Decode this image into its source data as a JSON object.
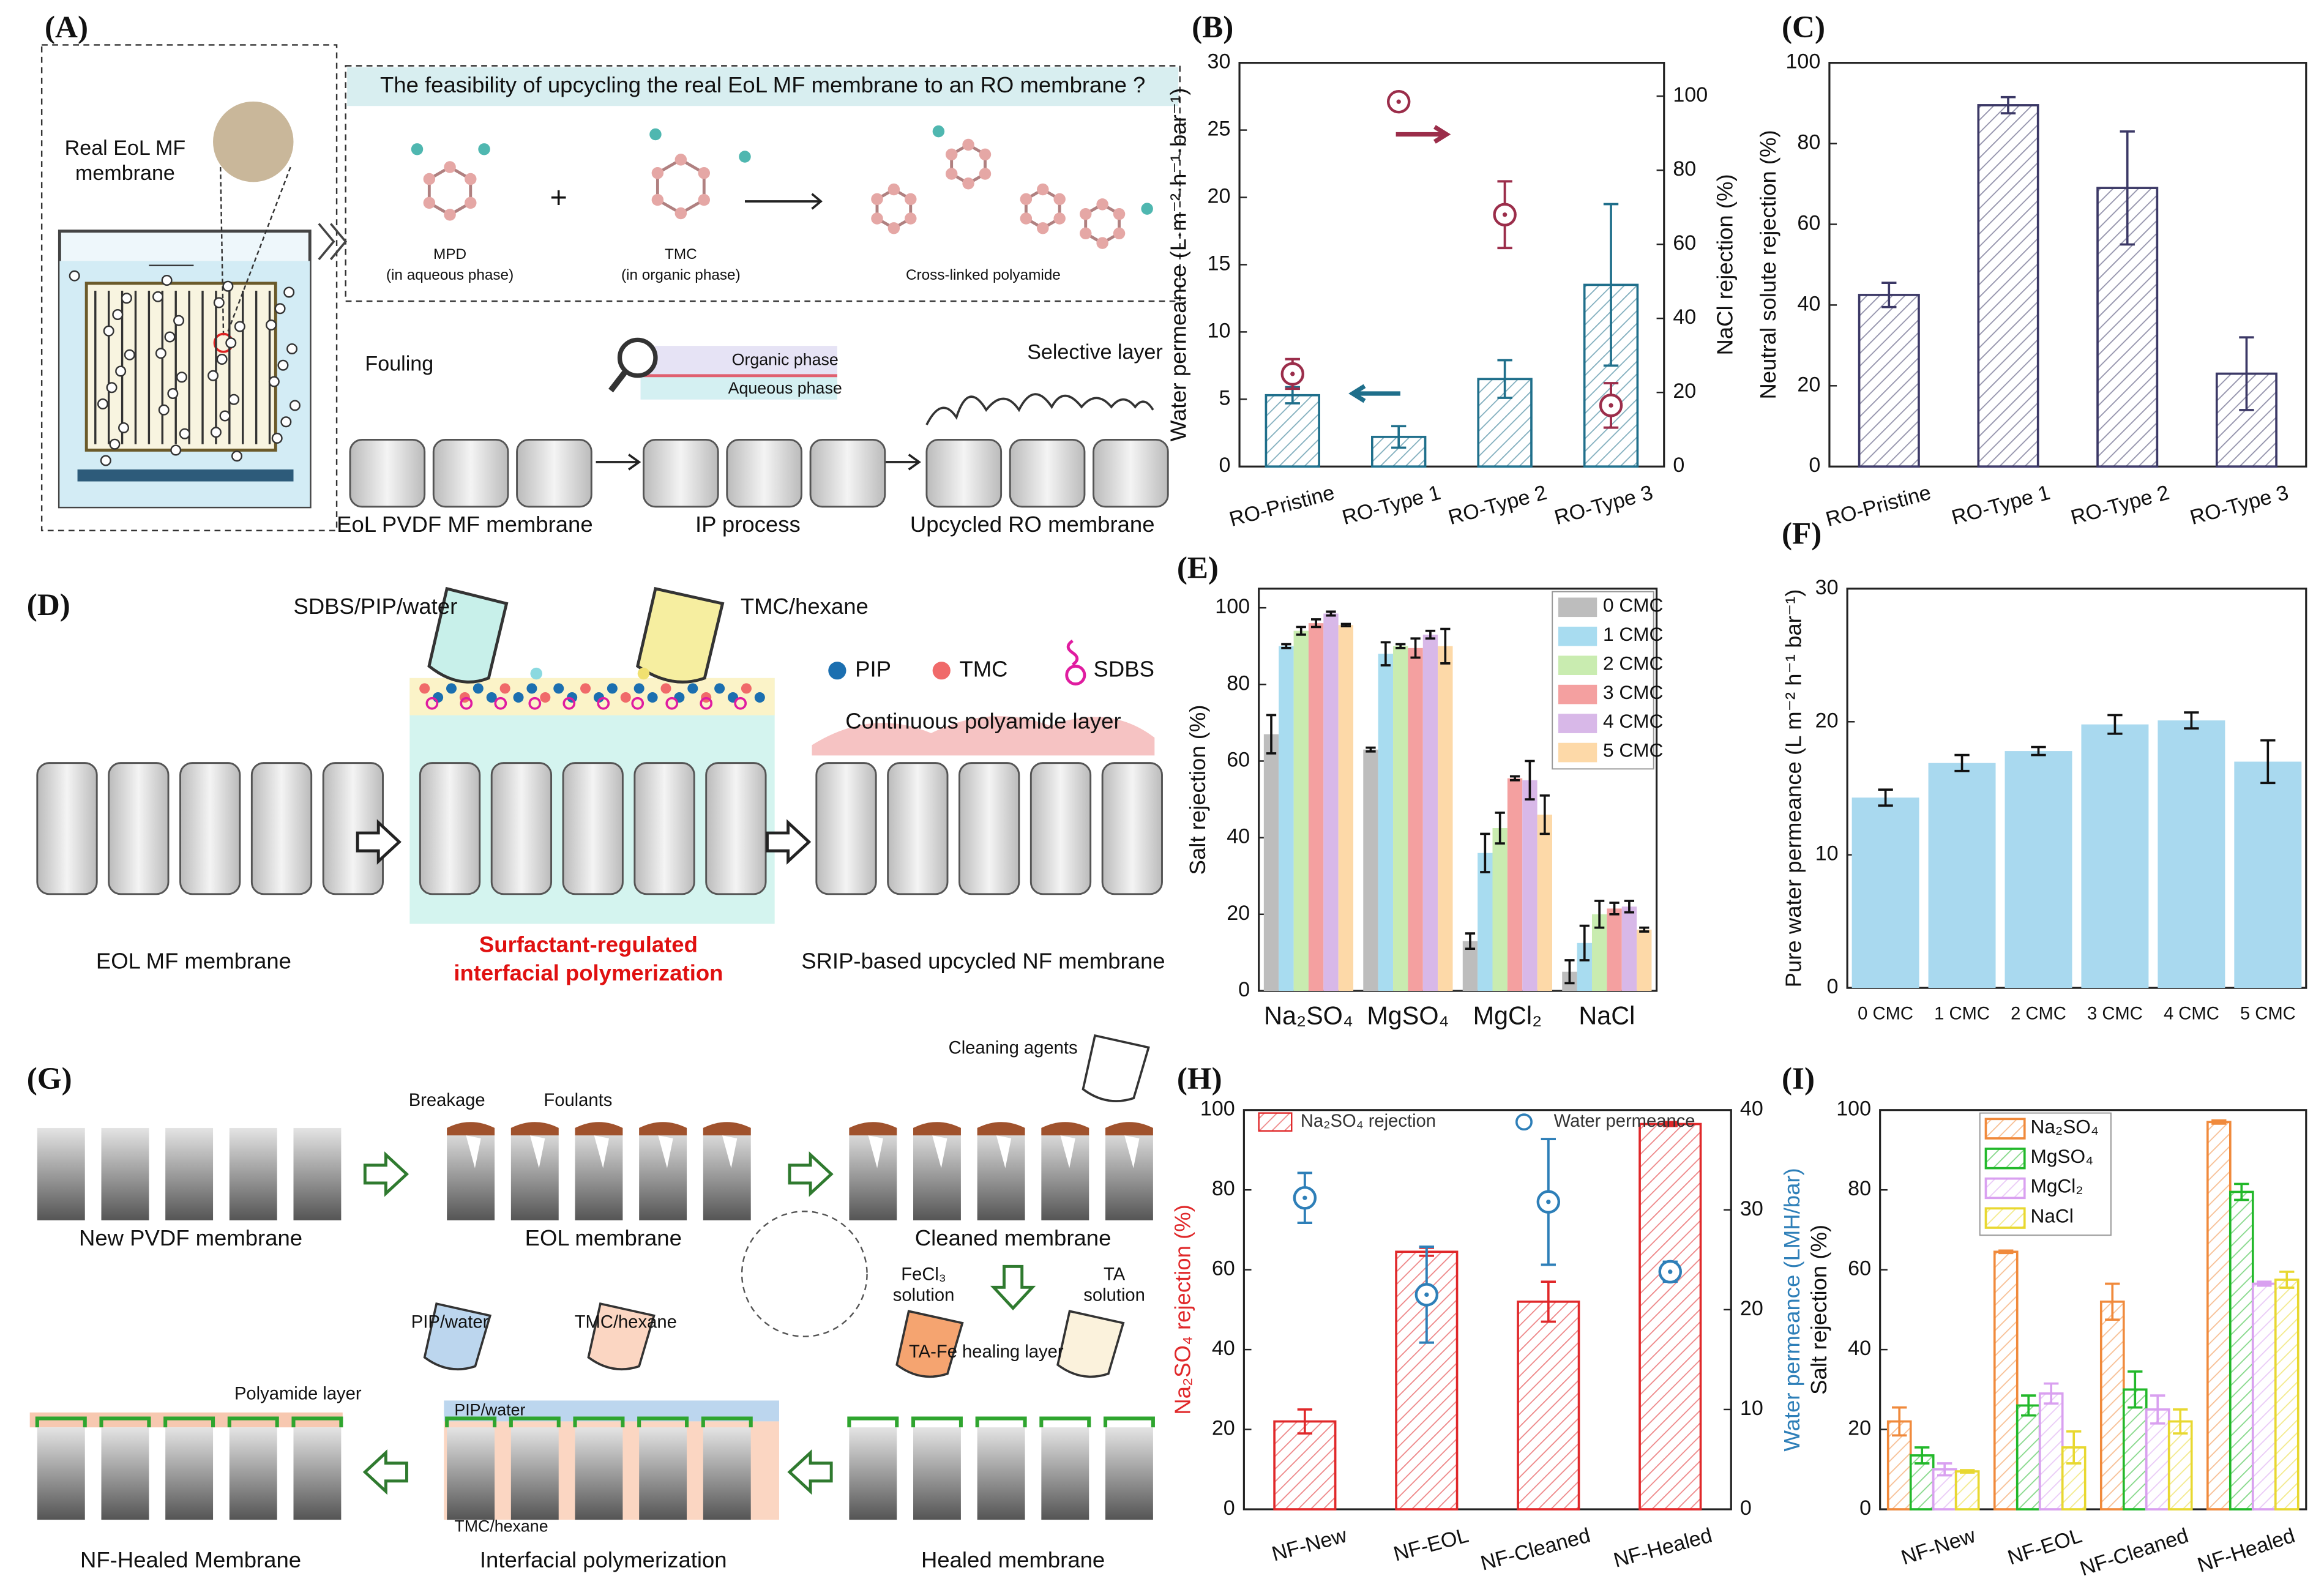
{
  "figure": {
    "panel_labels": [
      "(A)",
      "(B)",
      "(C)",
      "(D)",
      "(E)",
      "(F)",
      "(G)",
      "(H)",
      "(I)"
    ],
    "A": {
      "question": "The feasibility of upcycling the real EoL MF membrane to an RO membrane ?",
      "real_1": "Real EoL MF",
      "real_2": "membrane",
      "mpd": "MPD",
      "mpd_phase": "(in aqueous phase)",
      "plus": "+",
      "tmc": "TMC",
      "tmc_phase": "(in organic phase)",
      "product": "Cross-linked polyamide",
      "fouling": "Fouling",
      "organic": "Organic phase",
      "aqueous": "Aqueous phase",
      "selective": "Selective layer",
      "step1": "EoL PVDF MF membrane",
      "step2": "IP process",
      "step3": "Upcycled RO membrane"
    },
    "D": {
      "beaker1": "SDBS/PIP/water",
      "beaker2": "TMC/hexane",
      "pip": "PIP",
      "tmc": "TMC",
      "sdbs": "SDBS",
      "layer": "Continuous polyamide layer",
      "step1": "EOL  MF membrane",
      "step2_1": "Surfactant-regulated",
      "step2_2": "interfacial polymerization",
      "step3": "SRIP-based upcycled NF membrane"
    },
    "G": {
      "breakage": "Breakage",
      "foulants": "Foulants",
      "cleaning": "Cleaning agents",
      "new": "New PVDF membrane",
      "eol": "EOL membrane",
      "cleaned": "Cleaned membrane",
      "pip": "PIP/water",
      "tmc": "TMC/hexane",
      "fecl3": "FeCl₃",
      "fecl3_sol": "solution",
      "ta": "TA",
      "ta_sol": "solution",
      "healing": "TA-Fe healing layer",
      "polyamide": "Polyamide layer",
      "pip_bar": "PIP/water",
      "tmc_bar": "TMC/hexane",
      "healed_nf": "NF-Healed Membrane",
      "ip": "Interfacial polymerization",
      "healed": "Healed membrane"
    }
  },
  "chart_data": [
    {
      "type": "bar",
      "hatch": true,
      "categories": [
        "RO-Pristine",
        "RO-Type 1",
        "RO-Type 2",
        "RO-Type 3"
      ],
      "ylabel": "Water permeance (L·m⁻²·h⁻¹·bar⁻¹)",
      "y2label": "NaCl rejection (%)",
      "ylim": [
        0,
        30
      ],
      "yticks": [
        0,
        5,
        10,
        15,
        20,
        25,
        30
      ],
      "y2lim": [
        0,
        109
      ],
      "y2ticks": [
        0,
        20,
        40,
        60,
        80,
        100
      ],
      "series": [
        {
          "color": "#1f6f8b",
          "values": [
            5.3,
            2.2,
            6.5,
            13.5
          ],
          "errors": [
            0.6,
            0.8,
            1.4,
            6
          ]
        },
        {
          "type": "point",
          "axis": "y2",
          "color": "#9b2d4a",
          "values": [
            25,
            98.5,
            68,
            16.5
          ],
          "errors": [
            4,
            1.5,
            9,
            6
          ]
        }
      ]
    },
    {
      "type": "bar",
      "hatch": true,
      "categories": [
        "RO-Pristine",
        "RO-Type 1",
        "RO-Type 2",
        "RO-Type 3"
      ],
      "ylabel": "Neutral solute rejection (%)",
      "ylim": [
        0,
        100
      ],
      "yticks": [
        0,
        20,
        40,
        60,
        80,
        100
      ],
      "series": [
        {
          "color": "#3b3866",
          "values": [
            42.5,
            89.5,
            69,
            23
          ],
          "errors": [
            3,
            2,
            14,
            9
          ]
        }
      ]
    },
    {
      "type": "bar",
      "hatch": false,
      "legend": "upper right",
      "categories": [
        "Na₂SO₄",
        "MgSO₄",
        "MgCl₂",
        "NaCl"
      ],
      "ylabel": "Salt rejection (%)",
      "ylim": [
        0,
        105
      ],
      "yticks": [
        0,
        20,
        40,
        60,
        80,
        100
      ],
      "series": [
        {
          "name": "0 CMC",
          "color": "#bdbdbd",
          "values": [
            67,
            63,
            13,
            5
          ],
          "errors": [
            5,
            0.5,
            2,
            3
          ]
        },
        {
          "name": "1 CMC",
          "color": "#a8dcf0",
          "values": [
            90,
            88,
            36,
            12.5
          ],
          "errors": [
            0.5,
            3,
            5,
            4.5
          ]
        },
        {
          "name": "2 CMC",
          "color": "#c9ecb0",
          "values": [
            94,
            90,
            42.5,
            20
          ],
          "errors": [
            1,
            0.5,
            4,
            3.5
          ]
        },
        {
          "name": "3 CMC",
          "color": "#f4a0a0",
          "values": [
            96,
            89.5,
            55.5,
            21.5
          ],
          "errors": [
            1,
            2.5,
            0.5,
            1.5
          ]
        },
        {
          "name": "4 CMC",
          "color": "#d8b8e8",
          "values": [
            98.5,
            93,
            55,
            22
          ],
          "errors": [
            0.5,
            1,
            5,
            1.5
          ]
        },
        {
          "name": "5 CMC",
          "color": "#fdd9a8",
          "values": [
            95.5,
            90,
            46,
            16
          ],
          "errors": [
            0.3,
            4.5,
            5,
            0.5
          ]
        }
      ]
    },
    {
      "type": "bar",
      "hatch": false,
      "categories": [
        "0 CMC",
        "1 CMC",
        "2 CMC",
        "3 CMC",
        "4 CMC",
        "5 CMC"
      ],
      "ylabel": "Pure water permeance (L m⁻² h⁻¹ bar⁻¹)",
      "ylim": [
        0,
        30
      ],
      "yticks": [
        0,
        10,
        20,
        30
      ],
      "series": [
        {
          "color": "#a9d9ef",
          "values": [
            14.3,
            16.9,
            17.8,
            19.8,
            20.1,
            17
          ],
          "errors": [
            0.6,
            0.6,
            0.3,
            0.7,
            0.6,
            1.6
          ]
        }
      ]
    },
    {
      "type": "bar",
      "hatch": true,
      "legend": "top",
      "categories": [
        "NF-New",
        "NF-EOL",
        "NF-Cleaned",
        "NF-Healed"
      ],
      "ylabel": "Na₂SO₄ rejection (%)",
      "ylabel_color": "#e0282a",
      "y2label": "Water permeance (LMH/bar)",
      "y2label_color": "#2e7fb8",
      "ylim": [
        0,
        100
      ],
      "yticks": [
        0,
        20,
        40,
        60,
        80,
        100
      ],
      "y2lim": [
        0,
        40
      ],
      "y2ticks": [
        0,
        10,
        20,
        30,
        40
      ],
      "series": [
        {
          "name": "Na₂SO₄ rejection",
          "color": "#e0282a",
          "values": [
            22,
            64.5,
            52,
            96.5
          ],
          "errors": [
            3,
            1,
            5,
            0.5
          ]
        },
        {
          "name": "Water permeance",
          "type": "point",
          "axis": "y2",
          "color": "#2e7fb8",
          "values": [
            31.2,
            21.5,
            30.8,
            23.8
          ],
          "errors": [
            2.5,
            4.8,
            6.3,
            1
          ]
        }
      ]
    },
    {
      "type": "bar",
      "hatch": true,
      "legend": "upper center",
      "categories": [
        "NF-New",
        "NF-EOL",
        "NF-Cleaned",
        "NF-Healed"
      ],
      "ylabel": "Salt rejection (%)",
      "ylim": [
        0,
        100
      ],
      "yticks": [
        0,
        20,
        40,
        60,
        80,
        100
      ],
      "series": [
        {
          "name": "Na₂SO₄",
          "color": "#f08a3c",
          "values": [
            22,
            64.5,
            52,
            97
          ],
          "errors": [
            3.5,
            0.3,
            4.5,
            0.4
          ]
        },
        {
          "name": "MgSO₄",
          "color": "#22b82a",
          "values": [
            13.5,
            26,
            30,
            79.5
          ],
          "errors": [
            2,
            2.5,
            4.5,
            2
          ]
        },
        {
          "name": "MgCl₂",
          "color": "#d9a0f0",
          "values": [
            10,
            29,
            25,
            56.5
          ],
          "errors": [
            1.5,
            2.5,
            3.5,
            0.5
          ]
        },
        {
          "name": "NaCl",
          "color": "#e8d830",
          "values": [
            9.5,
            15.5,
            22,
            57.5
          ],
          "errors": [
            0.3,
            4,
            3,
            2
          ]
        }
      ]
    }
  ]
}
